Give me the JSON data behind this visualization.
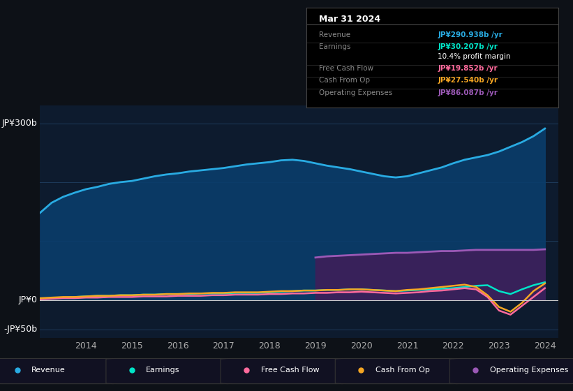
{
  "bg_color": "#0d1117",
  "plot_bg_color": "#0d1b2e",
  "title_date": "Mar 31 2024",
  "ylabel_top": "JP¥300b",
  "ylabel_mid": "JP¥0",
  "ylabel_bot": "-JP¥50b",
  "years": [
    2013,
    2013.25,
    2013.5,
    2013.75,
    2014,
    2014.25,
    2014.5,
    2014.75,
    2015,
    2015.25,
    2015.5,
    2015.75,
    2016,
    2016.25,
    2016.5,
    2016.75,
    2017,
    2017.25,
    2017.5,
    2017.75,
    2018,
    2018.25,
    2018.5,
    2018.75,
    2019,
    2019.25,
    2019.5,
    2019.75,
    2020,
    2020.25,
    2020.5,
    2020.75,
    2021,
    2021.25,
    2021.5,
    2021.75,
    2022,
    2022.25,
    2022.5,
    2022.75,
    2023,
    2023.25,
    2023.5,
    2023.75,
    2024
  ],
  "revenue": [
    148,
    165,
    175,
    182,
    188,
    192,
    197,
    200,
    202,
    206,
    210,
    213,
    215,
    218,
    220,
    222,
    224,
    227,
    230,
    232,
    234,
    237,
    238,
    236,
    232,
    228,
    225,
    222,
    218,
    214,
    210,
    208,
    210,
    215,
    220,
    225,
    232,
    238,
    242,
    246,
    252,
    260,
    268,
    278,
    291
  ],
  "operating_expenses_start": 2019.0,
  "operating_expenses": [
    72,
    74,
    75,
    76,
    77,
    78,
    79,
    80,
    80,
    81,
    82,
    83,
    83,
    84,
    85,
    85,
    85,
    85,
    85,
    85,
    86
  ],
  "earnings": [
    2,
    3,
    4,
    5,
    6,
    7,
    7,
    8,
    8,
    9,
    9,
    10,
    10,
    10,
    11,
    11,
    11,
    12,
    12,
    12,
    13,
    14,
    15,
    16,
    16,
    17,
    17,
    18,
    18,
    17,
    16,
    15,
    16,
    17,
    18,
    19,
    20,
    22,
    24,
    25,
    15,
    10,
    18,
    25,
    30
  ],
  "free_cash_flow": [
    1,
    2,
    3,
    3,
    4,
    4,
    5,
    5,
    5,
    6,
    6,
    6,
    7,
    7,
    7,
    8,
    8,
    9,
    9,
    9,
    10,
    10,
    11,
    11,
    12,
    12,
    13,
    13,
    14,
    13,
    12,
    11,
    12,
    13,
    15,
    16,
    18,
    20,
    18,
    5,
    -18,
    -25,
    -10,
    5,
    20
  ],
  "cash_from_op": [
    3,
    4,
    5,
    5,
    6,
    7,
    7,
    8,
    8,
    9,
    9,
    10,
    10,
    11,
    11,
    12,
    12,
    13,
    13,
    13,
    14,
    15,
    15,
    16,
    16,
    17,
    17,
    18,
    18,
    17,
    16,
    15,
    17,
    18,
    20,
    22,
    24,
    26,
    22,
    8,
    -12,
    -20,
    -5,
    15,
    28
  ],
  "colors": {
    "revenue": "#29abe2",
    "revenue_fill": "#0a3d6b",
    "earnings": "#00e5c8",
    "free_cash_flow": "#ff6b9d",
    "cash_from_op": "#f5a623",
    "operating_expenses": "#9b59b6",
    "operating_expenses_fill": "#3d1f5a"
  },
  "tooltip": {
    "date": "Mar 31 2024",
    "bg": "#000000",
    "border": "#333333",
    "rows": [
      {
        "label": "Revenue",
        "value": "JP¥290.938b /yr",
        "color": "#29abe2"
      },
      {
        "label": "Earnings",
        "value": "JP¥30.207b /yr",
        "color": "#00e5c8"
      },
      {
        "label": "",
        "value": "10.4% profit margin",
        "color": "#ffffff"
      },
      {
        "label": "Free Cash Flow",
        "value": "JP¥19.852b /yr",
        "color": "#ff6b9d"
      },
      {
        "label": "Cash From Op",
        "value": "JP¥27.540b /yr",
        "color": "#f5a623"
      },
      {
        "label": "Operating Expenses",
        "value": "JP¥86.087b /yr",
        "color": "#9b59b6"
      }
    ]
  },
  "legend": [
    {
      "label": "Revenue",
      "color": "#29abe2"
    },
    {
      "label": "Earnings",
      "color": "#00e5c8"
    },
    {
      "label": "Free Cash Flow",
      "color": "#ff6b9d"
    },
    {
      "label": "Cash From Op",
      "color": "#f5a623"
    },
    {
      "label": "Operating Expenses",
      "color": "#9b59b6"
    }
  ],
  "xlim": [
    2013.0,
    2024.3
  ],
  "ylim": [
    -65,
    330
  ],
  "xticks": [
    2014,
    2015,
    2016,
    2017,
    2018,
    2019,
    2020,
    2021,
    2022,
    2023,
    2024
  ],
  "grid_color": "#1e3a5a",
  "zero_line_color": "#cccccc"
}
